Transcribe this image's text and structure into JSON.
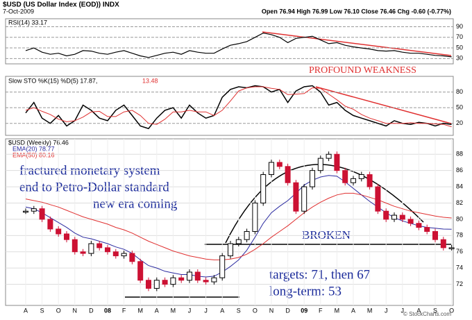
{
  "chart_data": {
    "type": "stock",
    "title": "$USD (US Dollar Index (EOD)) INDX",
    "date": "7-Oct-2009",
    "quote": "Open 76.94 High 76.99 Low 76.10 Close 76.46 Chg -0.60 (-0.77%)",
    "credit": "© StockCharts.com",
    "categories": [
      "A",
      "S",
      "O",
      "N",
      "D",
      "08",
      "F",
      "M",
      "A",
      "M",
      "J",
      "J",
      "A",
      "S",
      "O",
      "N",
      "D",
      "09",
      "F",
      "M",
      "A",
      "M",
      "J",
      "J",
      "A",
      "S",
      "O"
    ],
    "rsi": {
      "name": "RSI(14) 33.17",
      "color": "#000000",
      "values": [
        45,
        50,
        42,
        38,
        40,
        35,
        38,
        45,
        44,
        40,
        38,
        42,
        45,
        40,
        35,
        32,
        36,
        40,
        42,
        38,
        45,
        42,
        40,
        40,
        48,
        55,
        58,
        62,
        70,
        78,
        75,
        70,
        60,
        68,
        70,
        72,
        65,
        58,
        60,
        55,
        52,
        50,
        48,
        45,
        44,
        45,
        42,
        40,
        40,
        38,
        36,
        35,
        33.17
      ],
      "ylim": [
        20,
        105
      ],
      "yticks": [
        30,
        50,
        70,
        90
      ]
    },
    "sto": {
      "name": "Slow STO %K(15) %D(5) 17.87,",
      "name_d": "13.48",
      "series": [
        {
          "name": "%K",
          "color": "#000000",
          "values": [
            40,
            60,
            30,
            20,
            35,
            15,
            25,
            55,
            45,
            30,
            25,
            45,
            55,
            35,
            15,
            10,
            30,
            45,
            50,
            30,
            55,
            40,
            30,
            35,
            70,
            85,
            90,
            88,
            92,
            90,
            80,
            85,
            60,
            82,
            90,
            92,
            80,
            55,
            60,
            45,
            35,
            30,
            25,
            20,
            15,
            25,
            20,
            18,
            22,
            20,
            15,
            20,
            17.87
          ]
        },
        {
          "name": "%D",
          "color": "#e03030",
          "values": [
            45,
            50,
            43,
            37,
            28,
            23,
            25,
            32,
            42,
            43,
            33,
            33,
            42,
            45,
            35,
            20,
            18,
            28,
            42,
            42,
            45,
            42,
            42,
            35,
            45,
            63,
            82,
            88,
            90,
            90,
            87,
            85,
            75,
            76,
            77,
            88,
            87,
            76,
            65,
            53,
            47,
            37,
            30,
            25,
            20,
            20,
            20,
            21,
            20,
            20,
            19,
            18,
            13.48
          ]
        }
      ],
      "ylim": [
        -3,
        110
      ],
      "yticks": [
        20,
        50,
        80
      ]
    },
    "price": {
      "name": "$USD (Weekly) 76.46",
      "up_color": "#000000",
      "down_color": "#cc1133",
      "values": [
        81.0,
        81.3,
        80.0,
        78.8,
        78.2,
        77.5,
        76.0,
        75.8,
        77.0,
        76.5,
        76.0,
        75.5,
        75.8,
        74.8,
        72.5,
        71.5,
        72.5,
        72.0,
        72.8,
        72.5,
        73.5,
        72.5,
        72.3,
        72.8,
        75.5,
        77.0,
        77.5,
        78.5,
        82.0,
        85.5,
        87.0,
        86.5,
        84.5,
        81.0,
        84.0,
        86.0,
        87.5,
        88.0,
        86.0,
        84.5,
        85.0,
        85.5,
        84.0,
        81.0,
        80.0,
        80.5,
        80.0,
        79.5,
        79.0,
        78.5,
        77.5,
        76.5,
        76.5
      ],
      "series": [
        {
          "name": "EMA(20) 78.77",
          "color": "#2a2aa0",
          "values": [
            81.5,
            81.3,
            80.8,
            80.2,
            79.6,
            79.0,
            78.3,
            77.8,
            77.6,
            77.3,
            77.0,
            76.6,
            76.3,
            75.8,
            75.0,
            74.3,
            74.0,
            73.6,
            73.4,
            73.2,
            73.2,
            73.0,
            72.9,
            73.0,
            73.5,
            74.2,
            75.0,
            76.2,
            77.8,
            79.5,
            80.8,
            81.6,
            82.3,
            83.2,
            84.2,
            84.8,
            85.2,
            85.4,
            85.3,
            84.6,
            83.8,
            83.0,
            82.2,
            81.5,
            80.8,
            80.2,
            79.8,
            79.5,
            79.2,
            79.0,
            78.9,
            78.8,
            78.77
          ]
        },
        {
          "name": "EMA(50) 80.16",
          "color": "#e03030",
          "values": [
            82.5,
            82.3,
            82.1,
            81.8,
            81.5,
            81.1,
            80.7,
            80.3,
            80.0,
            79.7,
            79.4,
            79.0,
            78.7,
            78.3,
            77.8,
            77.3,
            76.9,
            76.5,
            76.1,
            75.8,
            75.5,
            75.3,
            75.1,
            75.0,
            75.0,
            75.1,
            75.3,
            75.7,
            76.3,
            77.0,
            77.8,
            78.5,
            79.2,
            80.0,
            80.8,
            81.5,
            82.1,
            82.6,
            83.0,
            83.2,
            83.2,
            83.0,
            82.7,
            82.4,
            82.0,
            81.6,
            81.3,
            81.0,
            80.8,
            80.6,
            80.4,
            80.25,
            80.16
          ]
        }
      ],
      "ylim": [
        69.4,
        89.9
      ],
      "yticks": [
        72,
        74,
        76,
        78,
        80,
        82,
        84,
        86,
        88
      ]
    },
    "annotations": [
      "PROFOUND WEAKNESS",
      "fractured monetary system",
      "end to Petro-Dollar standard",
      "new era coming",
      "BROKEN",
      "targets: 71, then 67",
      "long-term: 53"
    ]
  }
}
